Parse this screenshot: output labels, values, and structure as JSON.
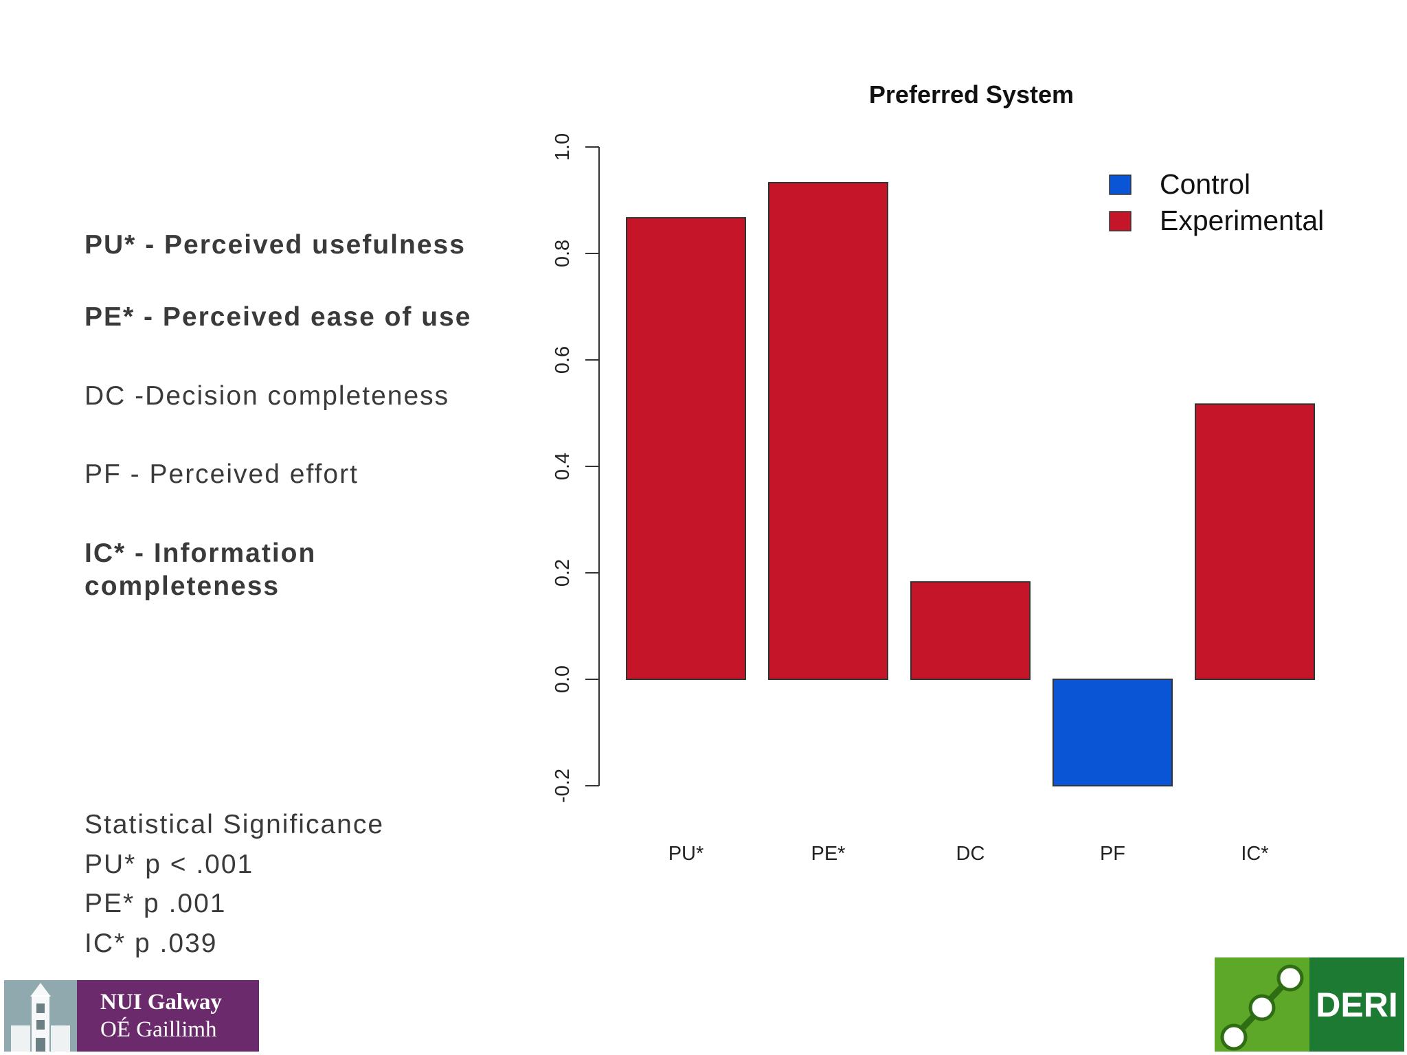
{
  "definitions": [
    {
      "text": "PU* - Perceived usefulness",
      "bold": true
    },
    {
      "text": "PE* - Perceived ease of use",
      "bold": true
    },
    {
      "text": "DC -Decision completeness",
      "bold": false
    },
    {
      "text": "PF - Perceived effort",
      "bold": false
    },
    {
      "text": "IC* - Information completeness",
      "bold": true
    }
  ],
  "stats": {
    "heading": "Statistical Significance",
    "lines": [
      "PU* p < .001",
      "PE* p   .001",
      "IC* p   .039"
    ]
  },
  "logos": {
    "nui_line1": "NUI Galway",
    "nui_line2": "OÉ Gaillimh",
    "deri": "DERI"
  },
  "colors": {
    "control": "#0a55d6",
    "experimental": "#c41628"
  },
  "chart_data": {
    "type": "bar",
    "title": "Preferred System",
    "xlabel": "",
    "ylabel": "",
    "categories": [
      "PU*",
      "PE*",
      "DC",
      "PF",
      "IC*"
    ],
    "values": [
      0.867,
      0.933,
      0.183,
      -0.2,
      0.517
    ],
    "groups": [
      "Experimental",
      "Experimental",
      "Experimental",
      "Control",
      "Experimental"
    ],
    "ylim": [
      -0.2,
      1.0
    ],
    "yticks": [
      "-0.2",
      "0.0",
      "0.2",
      "0.4",
      "0.6",
      "0.8",
      "1.0"
    ],
    "legend": [
      "Control",
      "Experimental"
    ],
    "legend_position": "top-right",
    "grid": false
  }
}
